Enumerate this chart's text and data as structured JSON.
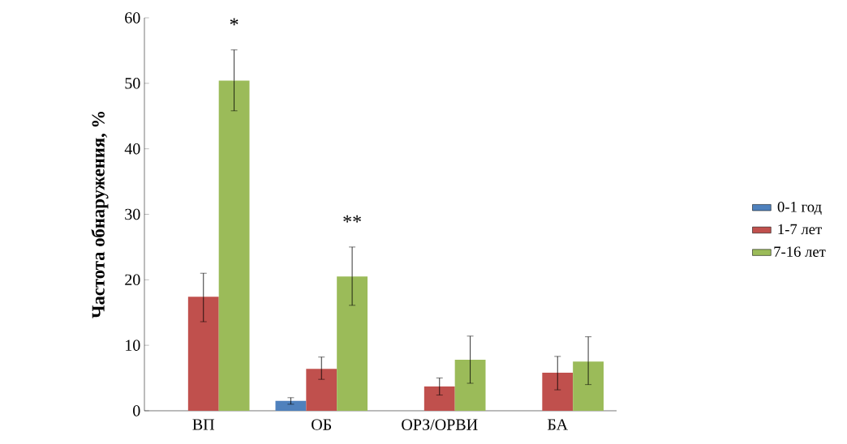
{
  "chart_data": {
    "type": "bar",
    "ylabel": "Частота обнаружения, %",
    "categories": [
      "ВП",
      "ОБ",
      "ОРЗ/ОРВИ",
      "БА"
    ],
    "series": [
      {
        "name": "0-1 год",
        "color": "#4f81bd",
        "values": [
          null,
          1.5,
          null,
          null
        ],
        "errors": [
          null,
          [
            1.0,
            2.0
          ],
          null,
          null
        ]
      },
      {
        "name": "1-7 лет",
        "color": "#c0504d",
        "values": [
          17.4,
          6.4,
          3.7,
          5.8
        ],
        "errors": [
          [
            13.6,
            21.0
          ],
          [
            4.8,
            8.2
          ],
          [
            2.4,
            5.0
          ],
          [
            3.2,
            8.3
          ]
        ]
      },
      {
        "name": "7-16 лет",
        "color": "#9bbb59",
        "values": [
          50.4,
          20.5,
          7.8,
          7.5
        ],
        "errors": [
          [
            45.8,
            55.1
          ],
          [
            16.1,
            25.0
          ],
          [
            4.2,
            11.4
          ],
          [
            4.0,
            11.3
          ]
        ]
      }
    ],
    "ylim": [
      0,
      60
    ],
    "yticks": [
      0,
      10,
      20,
      30,
      40,
      50,
      60
    ],
    "annotations": [
      "*",
      "**"
    ],
    "legend": "right",
    "grid": false
  }
}
